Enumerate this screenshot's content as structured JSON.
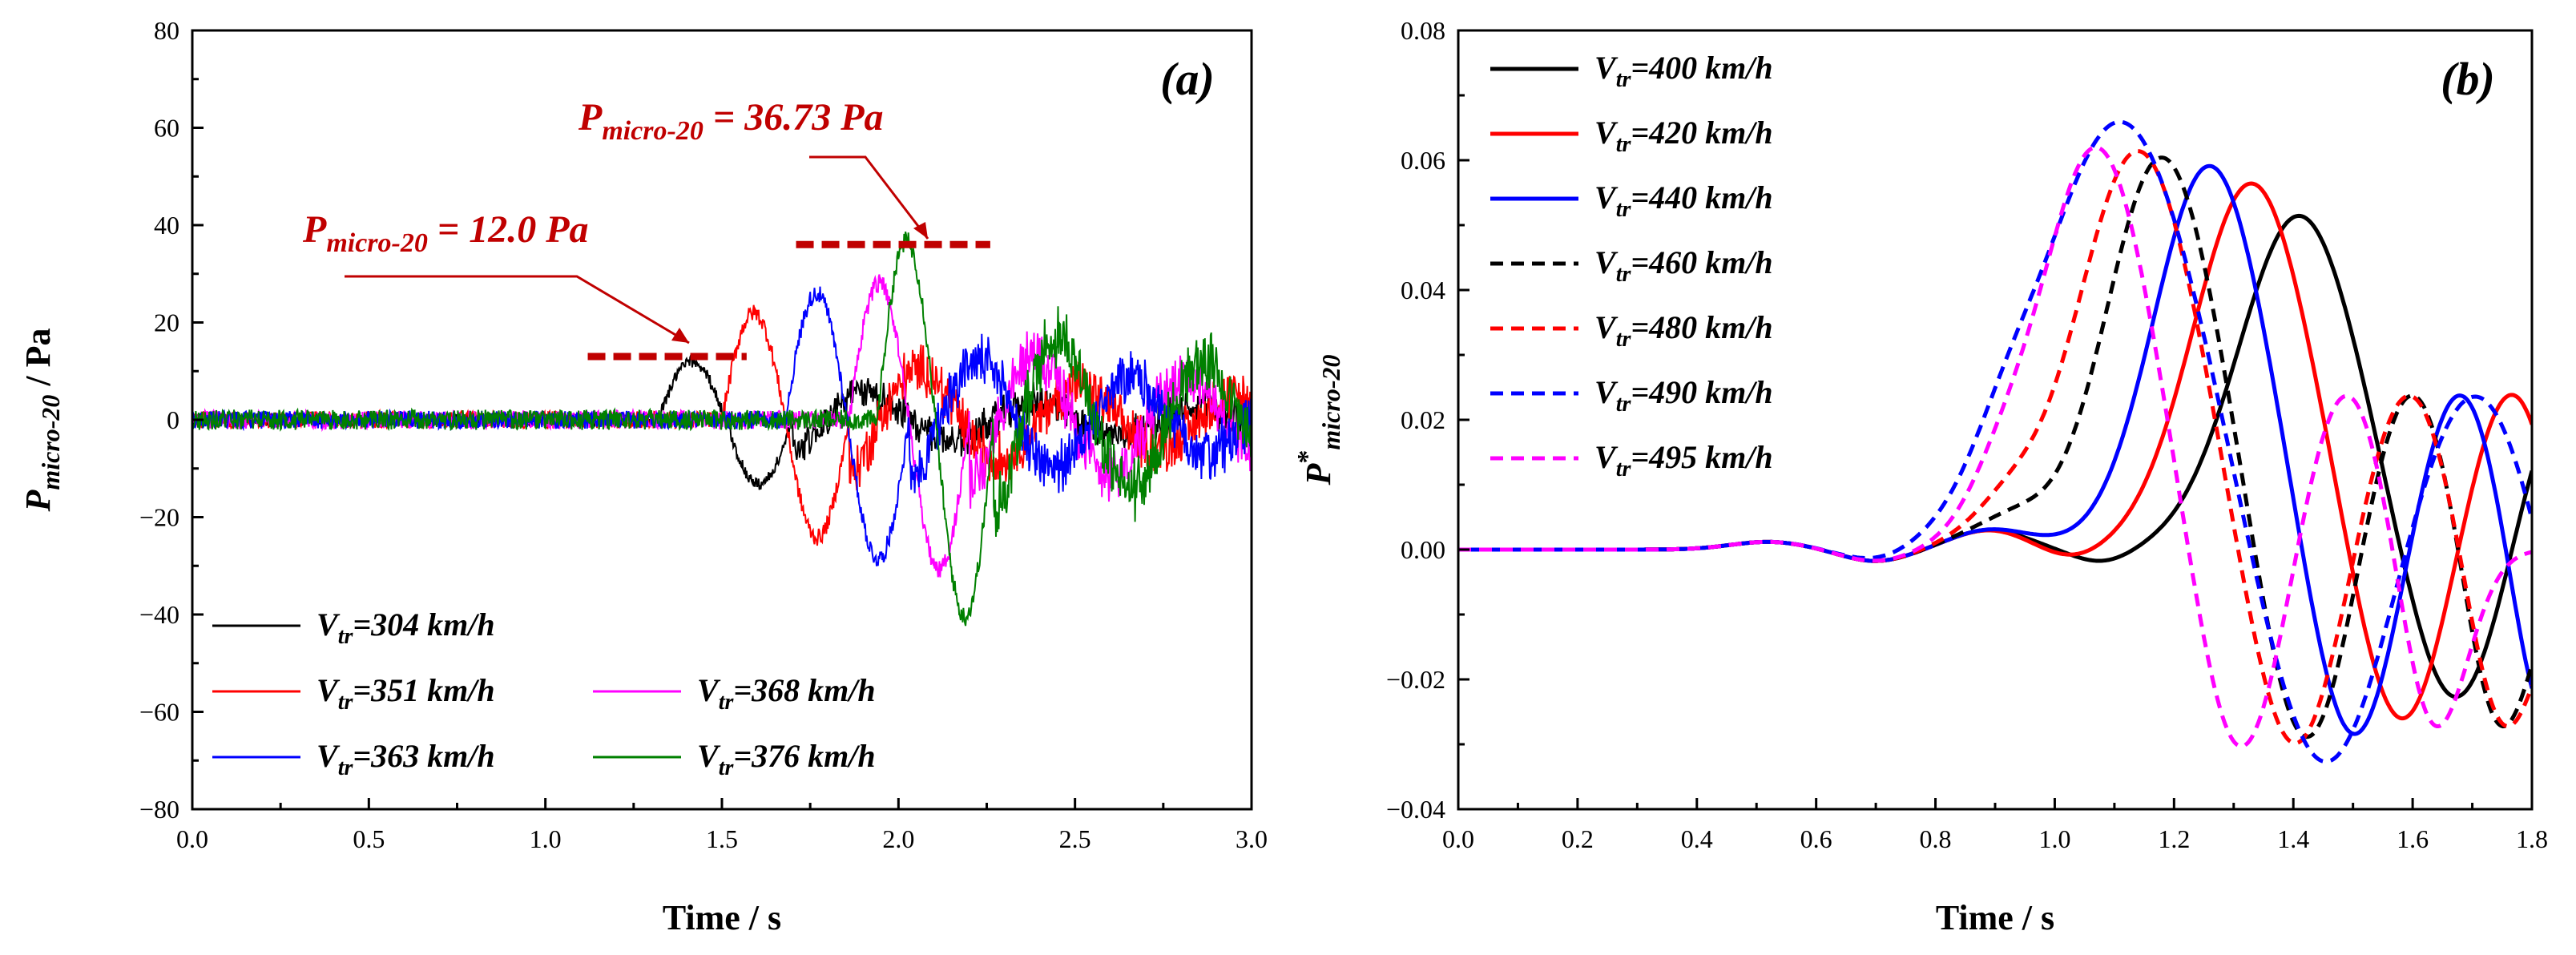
{
  "chart_data": [
    {
      "type": "line",
      "panel_label": "(a)",
      "xlabel": "Time / s",
      "ylabel": {
        "main": "P",
        "sub": "micro-20",
        "unit": " / Pa"
      },
      "xlim": [
        0.0,
        3.0
      ],
      "ylim": [
        -80,
        80
      ],
      "xticks": [
        "0.0",
        "0.5",
        "1.0",
        "1.5",
        "2.0",
        "2.5",
        "3.0"
      ],
      "xtick_values": [
        0.0,
        0.5,
        1.0,
        1.5,
        2.0,
        2.5,
        3.0
      ],
      "yticks": [
        "80",
        "60",
        "40",
        "20",
        "0",
        "−20",
        "−40",
        "−60",
        "−80"
      ],
      "ytick_values": [
        80,
        60,
        40,
        20,
        0,
        -20,
        -40,
        -60,
        -80
      ],
      "series": [
        {
          "name": "304 km/h",
          "color": "#000000",
          "onset": 1.32,
          "amp": 12.0,
          "period": 0.38,
          "noise": 1.6
        },
        {
          "name": "351 km/h",
          "color": "#ff0000",
          "onset": 1.5,
          "amp": 22.0,
          "period": 0.36,
          "noise": 2.2
        },
        {
          "name": "368 km/h",
          "color": "#ff00ff",
          "onset": 1.86,
          "amp": 28.0,
          "period": 0.34,
          "noise": 2.4
        },
        {
          "name": "363 km/h",
          "color": "#0000ff",
          "onset": 1.68,
          "amp": 26.0,
          "period": 0.35,
          "noise": 2.3
        },
        {
          "name": "376 km/h",
          "color": "#008000",
          "onset": 1.94,
          "amp": 36.73,
          "period": 0.33,
          "noise": 2.6
        }
      ],
      "legend_prefix": {
        "main": "V",
        "sub": "tr",
        "eq": "="
      },
      "annotations": [
        {
          "main": "P",
          "sub": "micro-20",
          "text": " = 12.0 Pa",
          "level": 13
        },
        {
          "main": "P",
          "sub": "micro-20",
          "text": " = 36.73 Pa",
          "level": 36
        }
      ]
    },
    {
      "type": "line",
      "panel_label": "(b)",
      "xlabel": "Time / s",
      "ylabel": {
        "main": "P",
        "sup": "*",
        "sub": "micro-20"
      },
      "xlim": [
        0.0,
        1.8
      ],
      "ylim": [
        -0.04,
        0.08
      ],
      "xticks": [
        "0.0",
        "0.2",
        "0.4",
        "0.6",
        "0.8",
        "1.0",
        "1.2",
        "1.4",
        "1.6",
        "1.8"
      ],
      "xtick_values": [
        0.0,
        0.2,
        0.4,
        0.6,
        0.8,
        1.0,
        1.2,
        1.4,
        1.6,
        1.8
      ],
      "yticks": [
        "0.08",
        "0.06",
        "0.04",
        "0.02",
        "0.00",
        "−0.02",
        "−0.04"
      ],
      "ytick_values": [
        0.08,
        0.06,
        0.04,
        0.02,
        0.0,
        -0.02,
        -0.04
      ],
      "series": [
        {
          "name": "400 km/h",
          "color": "#000000",
          "dash": false,
          "peak": [
            1.41,
            0.0515
          ],
          "trough": [
            1.67,
            -0.0255
          ],
          "pre": [
            1.08,
            -0.002
          ]
        },
        {
          "name": "420 km/h",
          "color": "#ff0000",
          "dash": false,
          "peak": [
            1.33,
            0.0565
          ],
          "trough": [
            1.58,
            -0.029
          ],
          "pre": [
            1.03,
            -0.0015
          ]
        },
        {
          "name": "440 km/h",
          "color": "#0000ff",
          "dash": false,
          "peak": [
            1.26,
            0.0592
          ],
          "trough": [
            1.5,
            -0.0315
          ],
          "pre": [
            0.98,
            0.0005
          ]
        },
        {
          "name": "460 km/h",
          "color": "#000000",
          "dash": true,
          "peak": [
            1.18,
            0.0605
          ],
          "trough": [
            1.42,
            -0.032
          ],
          "pre": [
            0.95,
            0.0025
          ]
        },
        {
          "name": "480 km/h",
          "color": "#ff0000",
          "dash": true,
          "peak": [
            1.14,
            0.0615
          ],
          "trough": [
            1.4,
            -0.033
          ],
          "pre": [
            0.93,
            0.003
          ]
        },
        {
          "name": "490 km/h",
          "color": "#0000ff",
          "dash": true,
          "peak": [
            1.11,
            0.066
          ],
          "trough": [
            1.45,
            -0.036
          ],
          "pre": [
            0.92,
            0.0035
          ]
        },
        {
          "name": "495 km/h",
          "color": "#ff00ff",
          "dash": true,
          "peak": [
            1.07,
            0.062
          ],
          "trough": [
            1.31,
            -0.0335
          ],
          "pre": [
            0.91,
            0.004
          ]
        }
      ],
      "legend_prefix": {
        "main": "V",
        "sub": "tr",
        "eq": "="
      }
    }
  ]
}
